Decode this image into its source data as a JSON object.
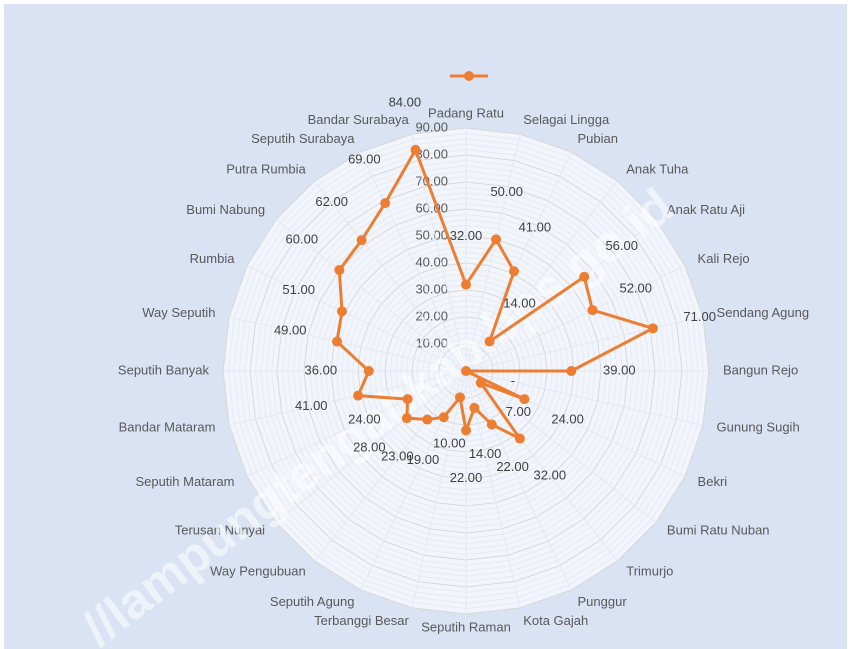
{
  "chart_data": {
    "type": "radar",
    "categories": [
      "Padang Ratu",
      "Selagai Lingga",
      "Pubian",
      "Anak Tuha",
      "Anak Ratu Aji",
      "Kali Rejo",
      "Sendang Agung",
      "Bangun Rejo",
      "Gunung Sugih",
      "Bekri",
      "Bumi Ratu Nuban",
      "Trimurjo",
      "Punggur",
      "Kota Gajah",
      "Seputih Raman",
      "Terbanggi Besar",
      "Seputih Agung",
      "Way Pengubuan",
      "Terusan Nunyai",
      "Seputih Mataram",
      "Bandar Mataram",
      "Seputih Banyak",
      "Way Seputih",
      "Rumbia",
      "Bumi Nabung",
      "Putra Rumbia",
      "Seputih Surabaya",
      "Bandar Surabaya"
    ],
    "values": [
      32,
      50,
      41,
      14,
      56,
      52,
      71,
      39,
      0,
      24,
      7,
      32,
      22,
      14,
      22,
      10,
      19,
      23,
      28,
      24,
      41,
      36,
      49,
      51,
      60,
      62,
      69,
      84
    ],
    "value_labels": [
      "32.00",
      "50.00",
      "41.00",
      "14.00",
      "56.00",
      "52.00",
      "71.00",
      "39.00",
      "-",
      "24.00",
      "7.00",
      "32.00",
      "22.00",
      "14.00",
      "22.00",
      "10.00",
      "19.00",
      "23.00",
      "28.00",
      "24.00",
      "41.00",
      "36.00",
      "49.00",
      "51.00",
      "60.00",
      "62.00",
      "69.00",
      "84.00"
    ],
    "color": "#ed7d31",
    "ylim": [
      0,
      90
    ],
    "yticks": [
      {
        "value": 0,
        "label": "-"
      },
      {
        "value": 10,
        "label": "10.00"
      },
      {
        "value": 20,
        "label": "20.00"
      },
      {
        "value": 30,
        "label": "30.00"
      },
      {
        "value": 40,
        "label": "40.00"
      },
      {
        "value": 50,
        "label": "50.00"
      },
      {
        "value": 60,
        "label": "60.00"
      },
      {
        "value": 70,
        "label": "70.00"
      },
      {
        "value": 80,
        "label": "80.00"
      },
      {
        "value": 90,
        "label": "90.00"
      }
    ],
    "grid": true,
    "watermark": "//lampungtengahkab.bps.go.id"
  }
}
